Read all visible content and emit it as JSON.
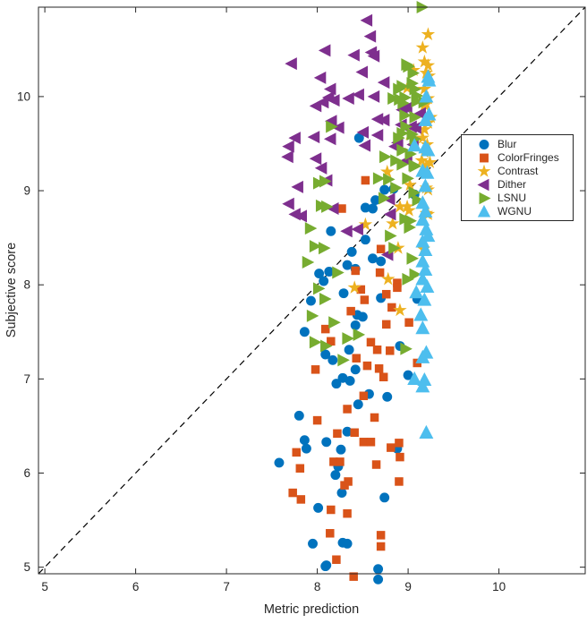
{
  "axes": {
    "xlabel": "Metric prediction",
    "ylabel": "Subjective score",
    "xlim": [
      4.93,
      10.95
    ],
    "ylim": [
      4.93,
      10.95
    ],
    "xticks": [
      5,
      6,
      7,
      8,
      9,
      10
    ],
    "yticks": [
      5,
      6,
      7,
      8,
      9,
      10
    ],
    "axis_color": "#262626",
    "tick_label_color": "#262626",
    "grid": false,
    "box": true
  },
  "identity_line": {
    "style": "dashed",
    "color": "#000000",
    "from": [
      4.93,
      4.93
    ],
    "to": [
      10.95,
      10.95
    ]
  },
  "legend": {
    "position": "right-middle",
    "labels": [
      "Blur",
      "ColorFringes",
      "Contrast",
      "Dither",
      "LSNU",
      "WGNU"
    ]
  },
  "chart_data": {
    "type": "scatter",
    "title": "",
    "xlabel": "Metric prediction",
    "ylabel": "Subjective score",
    "xlim": [
      4.93,
      10.95
    ],
    "ylim": [
      4.93,
      10.95
    ],
    "legend_position": "right-middle",
    "series": [
      {
        "name": "Blur",
        "marker": "circle",
        "color": "#0072BD",
        "points": [
          [
            8.46,
            9.56
          ],
          [
            9.07,
            8.96
          ],
          [
            8.84,
            9.02
          ],
          [
            8.74,
            9.01
          ],
          [
            8.64,
            8.9
          ],
          [
            8.61,
            8.81
          ],
          [
            8.53,
            8.82
          ],
          [
            8.15,
            8.57
          ],
          [
            8.53,
            8.48
          ],
          [
            8.38,
            8.35
          ],
          [
            8.61,
            8.28
          ],
          [
            8.7,
            8.25
          ],
          [
            8.33,
            8.21
          ],
          [
            8.42,
            8.17
          ],
          [
            8.13,
            8.14
          ],
          [
            8.02,
            8.12
          ],
          [
            8.07,
            8.04
          ],
          [
            8.29,
            7.91
          ],
          [
            8.7,
            7.86
          ],
          [
            7.93,
            7.83
          ],
          [
            9.1,
            7.85
          ],
          [
            8.44,
            7.68
          ],
          [
            8.5,
            7.66
          ],
          [
            8.42,
            7.57
          ],
          [
            7.86,
            7.5
          ],
          [
            8.91,
            7.35
          ],
          [
            8.35,
            7.31
          ],
          [
            8.09,
            7.26
          ],
          [
            8.17,
            7.2
          ],
          [
            8.42,
            7.1
          ],
          [
            9.0,
            7.04
          ],
          [
            8.28,
            7.01
          ],
          [
            8.36,
            6.98
          ],
          [
            8.21,
            6.95
          ],
          [
            8.57,
            6.84
          ],
          [
            8.77,
            6.81
          ],
          [
            8.45,
            6.73
          ],
          [
            7.8,
            6.61
          ],
          [
            8.33,
            6.44
          ],
          [
            8.1,
            6.33
          ],
          [
            7.86,
            6.35
          ],
          [
            8.26,
            6.25
          ],
          [
            7.88,
            6.26
          ],
          [
            8.88,
            6.26
          ],
          [
            7.58,
            6.11
          ],
          [
            8.23,
            6.07
          ],
          [
            8.2,
            5.98
          ],
          [
            8.27,
            5.79
          ],
          [
            8.74,
            5.74
          ],
          [
            8.01,
            5.63
          ],
          [
            7.95,
            5.25
          ],
          [
            8.28,
            5.26
          ],
          [
            8.33,
            5.25
          ],
          [
            8.1,
            5.02
          ],
          [
            8.09,
            5.01
          ],
          [
            8.67,
            4.98
          ],
          [
            8.67,
            4.87
          ]
        ]
      },
      {
        "name": "ColorFringes",
        "marker": "square",
        "color": "#D95319",
        "points": [
          [
            8.53,
            9.11
          ],
          [
            8.27,
            8.81
          ],
          [
            8.7,
            8.38
          ],
          [
            8.42,
            8.15
          ],
          [
            8.69,
            8.13
          ],
          [
            8.88,
            8.02
          ],
          [
            8.48,
            7.95
          ],
          [
            8.88,
            7.97
          ],
          [
            8.76,
            7.9
          ],
          [
            8.52,
            7.84
          ],
          [
            8.82,
            7.76
          ],
          [
            8.37,
            7.72
          ],
          [
            9.01,
            7.6
          ],
          [
            8.76,
            7.58
          ],
          [
            8.09,
            7.53
          ],
          [
            8.15,
            7.4
          ],
          [
            8.59,
            7.39
          ],
          [
            8.66,
            7.31
          ],
          [
            8.8,
            7.3
          ],
          [
            8.43,
            7.22
          ],
          [
            9.1,
            7.17
          ],
          [
            8.55,
            7.14
          ],
          [
            8.68,
            7.11
          ],
          [
            7.98,
            7.1
          ],
          [
            8.73,
            7.02
          ],
          [
            8.51,
            6.82
          ],
          [
            8.33,
            6.68
          ],
          [
            8.63,
            6.59
          ],
          [
            8.0,
            6.56
          ],
          [
            8.22,
            6.42
          ],
          [
            8.41,
            6.43
          ],
          [
            8.51,
            6.33
          ],
          [
            8.59,
            6.33
          ],
          [
            8.9,
            6.32
          ],
          [
            8.81,
            6.27
          ],
          [
            7.77,
            6.22
          ],
          [
            8.91,
            6.17
          ],
          [
            8.18,
            6.12
          ],
          [
            8.25,
            6.12
          ],
          [
            8.65,
            6.09
          ],
          [
            7.81,
            6.05
          ],
          [
            8.34,
            5.91
          ],
          [
            8.9,
            5.91
          ],
          [
            8.3,
            5.87
          ],
          [
            7.73,
            5.79
          ],
          [
            7.82,
            5.72
          ],
          [
            8.15,
            5.61
          ],
          [
            8.33,
            5.57
          ],
          [
            8.14,
            5.36
          ],
          [
            8.7,
            5.34
          ],
          [
            8.7,
            5.22
          ],
          [
            8.21,
            5.08
          ],
          [
            8.4,
            4.9
          ]
        ]
      },
      {
        "name": "Contrast",
        "marker": "pentagram",
        "color": "#EDB120",
        "points": [
          [
            9.22,
            10.66
          ],
          [
            9.16,
            10.52
          ],
          [
            9.18,
            10.37
          ],
          [
            9.22,
            10.33
          ],
          [
            9.06,
            10.28
          ],
          [
            9.2,
            10.25
          ],
          [
            9.23,
            10.22
          ],
          [
            8.99,
            10.09
          ],
          [
            9.18,
            10.08
          ],
          [
            9.22,
            9.98
          ],
          [
            9.2,
            9.92
          ],
          [
            9.18,
            9.91
          ],
          [
            9.25,
            9.78
          ],
          [
            9.22,
            9.72
          ],
          [
            9.18,
            9.65
          ],
          [
            9.02,
            9.6
          ],
          [
            9.16,
            9.56
          ],
          [
            9.21,
            9.49
          ],
          [
            9.18,
            9.41
          ],
          [
            9.15,
            9.32
          ],
          [
            9.24,
            9.3
          ],
          [
            9.2,
            9.26
          ],
          [
            8.77,
            9.2
          ],
          [
            9.02,
            9.06
          ],
          [
            9.2,
            9.03
          ],
          [
            9.22,
            9.01
          ],
          [
            8.91,
            8.83
          ],
          [
            8.99,
            8.83
          ],
          [
            9.01,
            8.79
          ],
          [
            9.2,
            8.76
          ],
          [
            9.22,
            8.75
          ],
          [
            8.83,
            8.65
          ],
          [
            8.53,
            8.64
          ],
          [
            8.89,
            8.39
          ],
          [
            9.17,
            8.38
          ],
          [
            8.78,
            8.06
          ],
          [
            8.41,
            7.97
          ],
          [
            8.91,
            7.73
          ]
        ]
      },
      {
        "name": "Dither",
        "marker": "triangle-left",
        "color": "#7E2F8E",
        "points": [
          [
            8.55,
            10.81
          ],
          [
            8.59,
            10.64
          ],
          [
            8.09,
            10.49
          ],
          [
            8.6,
            10.47
          ],
          [
            8.41,
            10.44
          ],
          [
            8.63,
            10.43
          ],
          [
            7.72,
            10.35
          ],
          [
            8.5,
            10.26
          ],
          [
            8.04,
            10.2
          ],
          [
            8.74,
            10.15
          ],
          [
            8.15,
            10.08
          ],
          [
            8.46,
            10.02
          ],
          [
            8.63,
            10.0
          ],
          [
            8.13,
            9.99
          ],
          [
            8.35,
            9.98
          ],
          [
            8.19,
            9.96
          ],
          [
            8.07,
            9.94
          ],
          [
            7.99,
            9.9
          ],
          [
            8.99,
            9.88
          ],
          [
            8.94,
            9.86
          ],
          [
            9.14,
            9.82
          ],
          [
            8.16,
            9.74
          ],
          [
            8.67,
            9.76
          ],
          [
            8.74,
            9.75
          ],
          [
            8.93,
            9.7
          ],
          [
            9.09,
            9.67
          ],
          [
            9.04,
            9.68
          ],
          [
            8.24,
            9.67
          ],
          [
            8.51,
            9.62
          ],
          [
            8.67,
            9.59
          ],
          [
            7.76,
            9.56
          ],
          [
            7.97,
            9.57
          ],
          [
            8.15,
            9.55
          ],
          [
            8.89,
            9.51
          ],
          [
            9.06,
            9.49
          ],
          [
            7.69,
            9.47
          ],
          [
            8.53,
            9.48
          ],
          [
            8.86,
            9.47
          ],
          [
            7.68,
            9.36
          ],
          [
            7.99,
            9.34
          ],
          [
            8.99,
            9.32
          ],
          [
            8.05,
            9.24
          ],
          [
            8.11,
            9.11
          ],
          [
            7.79,
            9.04
          ],
          [
            8.8,
            8.91
          ],
          [
            7.69,
            8.86
          ],
          [
            8.18,
            8.81
          ],
          [
            8.81,
            8.75
          ],
          [
            7.76,
            8.75
          ],
          [
            7.83,
            8.73
          ],
          [
            8.33,
            8.57
          ],
          [
            8.45,
            8.59
          ],
          [
            8.78,
            8.32
          ]
        ]
      },
      {
        "name": "LSNU",
        "marker": "triangle-right",
        "color": "#77AC30",
        "points": [
          [
            9.15,
            10.95
          ],
          [
            8.98,
            10.34
          ],
          [
            9.0,
            10.32
          ],
          [
            9.05,
            10.25
          ],
          [
            9.04,
            10.14
          ],
          [
            8.93,
            10.11
          ],
          [
            8.89,
            10.08
          ],
          [
            9.07,
            10.08
          ],
          [
            9.09,
            10.01
          ],
          [
            8.96,
            9.99
          ],
          [
            8.83,
            9.98
          ],
          [
            8.9,
            9.97
          ],
          [
            9.09,
            9.95
          ],
          [
            9.17,
            9.94
          ],
          [
            8.94,
            9.93
          ],
          [
            8.96,
            9.8
          ],
          [
            9.07,
            9.78
          ],
          [
            8.15,
            9.68
          ],
          [
            8.97,
            9.68
          ],
          [
            8.93,
            9.61
          ],
          [
            9.04,
            9.6
          ],
          [
            8.89,
            9.56
          ],
          [
            9.07,
            9.55
          ],
          [
            8.93,
            9.43
          ],
          [
            9.02,
            9.39
          ],
          [
            8.93,
            9.28
          ],
          [
            9.07,
            9.26
          ],
          [
            8.74,
            9.36
          ],
          [
            8.86,
            9.32
          ],
          [
            9.06,
            9.27
          ],
          [
            8.99,
            9.13
          ],
          [
            8.67,
            9.13
          ],
          [
            8.78,
            9.12
          ],
          [
            8.01,
            9.08
          ],
          [
            8.08,
            9.1
          ],
          [
            8.86,
            9.03
          ],
          [
            9.06,
            8.98
          ],
          [
            8.73,
            8.92
          ],
          [
            9.1,
            8.9
          ],
          [
            8.04,
            8.84
          ],
          [
            8.1,
            8.83
          ],
          [
            8.96,
            8.7
          ],
          [
            9.02,
            8.68
          ],
          [
            9.01,
            8.61
          ],
          [
            7.92,
            8.6
          ],
          [
            8.8,
            8.52
          ],
          [
            7.97,
            8.41
          ],
          [
            8.07,
            8.39
          ],
          [
            8.84,
            8.39
          ],
          [
            9.04,
            8.28
          ],
          [
            7.89,
            8.24
          ],
          [
            8.22,
            8.13
          ],
          [
            9.07,
            8.11
          ],
          [
            8.99,
            8.06
          ],
          [
            8.01,
            7.96
          ],
          [
            8.08,
            7.85
          ],
          [
            7.94,
            7.67
          ],
          [
            8.18,
            7.6
          ],
          [
            8.45,
            7.47
          ],
          [
            8.33,
            7.43
          ],
          [
            7.97,
            7.39
          ],
          [
            8.09,
            7.35
          ],
          [
            8.97,
            7.32
          ],
          [
            8.28,
            7.2
          ]
        ]
      },
      {
        "name": "WGNU",
        "marker": "triangle-up",
        "color": "#4DBEEE",
        "points": [
          [
            9.22,
            10.21
          ],
          [
            9.23,
            10.17
          ],
          [
            9.2,
            10.0
          ],
          [
            9.23,
            9.81
          ],
          [
            9.19,
            9.75
          ],
          [
            9.19,
            9.46
          ],
          [
            9.07,
            9.48
          ],
          [
            9.22,
            9.43
          ],
          [
            9.21,
            9.19
          ],
          [
            9.16,
            9.21
          ],
          [
            9.19,
            9.05
          ],
          [
            9.16,
            8.87
          ],
          [
            9.19,
            8.78
          ],
          [
            9.16,
            8.69
          ],
          [
            9.2,
            8.59
          ],
          [
            9.22,
            8.52
          ],
          [
            9.16,
            8.46
          ],
          [
            9.19,
            8.37
          ],
          [
            9.16,
            8.25
          ],
          [
            9.19,
            8.16
          ],
          [
            9.16,
            8.06
          ],
          [
            9.21,
            7.98
          ],
          [
            9.09,
            7.92
          ],
          [
            9.18,
            7.84
          ],
          [
            9.14,
            7.68
          ],
          [
            9.16,
            7.54
          ],
          [
            9.2,
            7.28
          ],
          [
            9.16,
            7.23
          ],
          [
            9.07,
            7.0
          ],
          [
            9.18,
            6.99
          ],
          [
            9.16,
            6.92
          ],
          [
            9.2,
            6.43
          ]
        ]
      }
    ]
  }
}
